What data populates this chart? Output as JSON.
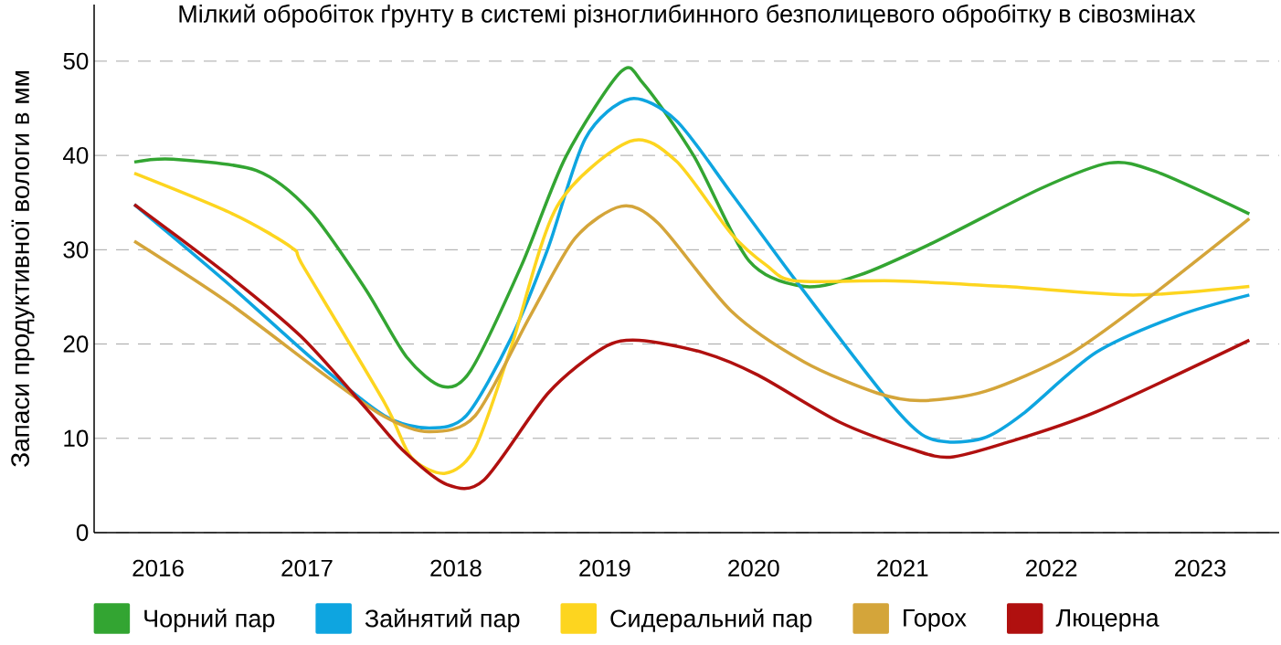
{
  "chart_data": {
    "type": "line",
    "title": "Мілкий обробіток ґрунту в системі різноглибинного безполицевого обробітку в сівозмінах",
    "ylabel": "Запаси продуктивної вологи в мм",
    "xlim": [
      2015.57,
      2023.53
    ],
    "ylim": [
      0,
      56
    ],
    "xticks": [
      2016,
      2017,
      2018,
      2019,
      2020,
      2021,
      2022,
      2023
    ],
    "yticks": [
      0,
      10,
      20,
      30,
      40,
      50
    ],
    "grid": "y",
    "legend": "bottom",
    "marker": "none",
    "line_style": "solid",
    "series": [
      {
        "name": "Чорний пар",
        "color": "#33a532",
        "x": [
          2015.84,
          2016.1,
          2016.66,
          2017.02,
          2017.39,
          2017.67,
          2017.91,
          2018.1,
          2018.44,
          2018.74,
          2019.11,
          2019.26,
          2019.6,
          2019.97,
          2020.34,
          2020.71,
          2021.2,
          2021.93,
          2022.39,
          2022.7,
          2023.33
        ],
        "values": [
          39.3,
          39.6,
          38.4,
          34.1,
          25.9,
          18.6,
          15.5,
          17.2,
          28.3,
          39.9,
          48.9,
          47.6,
          39.9,
          28.8,
          26.1,
          27.3,
          30.7,
          36.5,
          39.2,
          38.3,
          33.8
        ]
      },
      {
        "name": "Зайнятий пар",
        "color": "#0ea5e0",
        "x": [
          2015.84,
          2016.47,
          2017.06,
          2017.52,
          2017.82,
          2018.07,
          2018.37,
          2018.62,
          2018.87,
          2019.17,
          2019.48,
          2019.85,
          2020.28,
          2020.89,
          2021.13,
          2021.32,
          2021.56,
          2021.81,
          2022.3,
          2022.85,
          2023.33
        ],
        "values": [
          34.8,
          26.4,
          18.1,
          12.4,
          11.1,
          12.4,
          20.6,
          30.2,
          41.8,
          46.0,
          43.7,
          36.0,
          26.8,
          14.3,
          10.4,
          9.6,
          10.1,
          12.6,
          19.1,
          23.0,
          25.2
        ]
      },
      {
        "name": "Сидеральний пар",
        "color": "#fdd51f",
        "x": [
          2015.84,
          2016.5,
          2016.9,
          2016.98,
          2017.52,
          2017.7,
          2017.93,
          2018.13,
          2018.37,
          2018.68,
          2019.17,
          2019.48,
          2019.85,
          2020.09,
          2020.28,
          2020.95,
          2021.69,
          2022.55,
          2023.33
        ],
        "values": [
          38.1,
          33.8,
          30.2,
          28.1,
          13.8,
          8.0,
          6.3,
          9.0,
          19.6,
          34.6,
          41.5,
          39.4,
          31.7,
          28.3,
          26.7,
          26.7,
          26.1,
          25.2,
          26.1
        ]
      },
      {
        "name": "Горох",
        "color": "#d4a53a",
        "x": [
          2015.84,
          2016.47,
          2017.12,
          2017.52,
          2017.82,
          2018.13,
          2018.5,
          2018.8,
          2019.11,
          2019.36,
          2019.85,
          2020.34,
          2020.83,
          2021.13,
          2021.56,
          2022.12,
          2022.67,
          2023.33
        ],
        "values": [
          30.9,
          24.4,
          16.7,
          12.3,
          10.7,
          12.4,
          23.0,
          31.2,
          34.6,
          32.8,
          23.5,
          18.1,
          14.8,
          14.0,
          15.0,
          18.9,
          25.1,
          33.3
        ]
      },
      {
        "name": "Люцерна",
        "color": "#b0100f",
        "x": [
          2015.84,
          2016.47,
          2016.96,
          2017.39,
          2017.64,
          2017.94,
          2018.19,
          2018.62,
          2018.99,
          2019.23,
          2019.66,
          2020.03,
          2020.58,
          2021.07,
          2021.32,
          2021.69,
          2022.3,
          2023.33
        ],
        "values": [
          34.8,
          27.3,
          20.8,
          13.3,
          8.8,
          5.1,
          5.6,
          14.8,
          19.6,
          20.4,
          19.1,
          16.7,
          11.7,
          8.8,
          8.0,
          9.5,
          12.8,
          20.4
        ]
      }
    ]
  }
}
